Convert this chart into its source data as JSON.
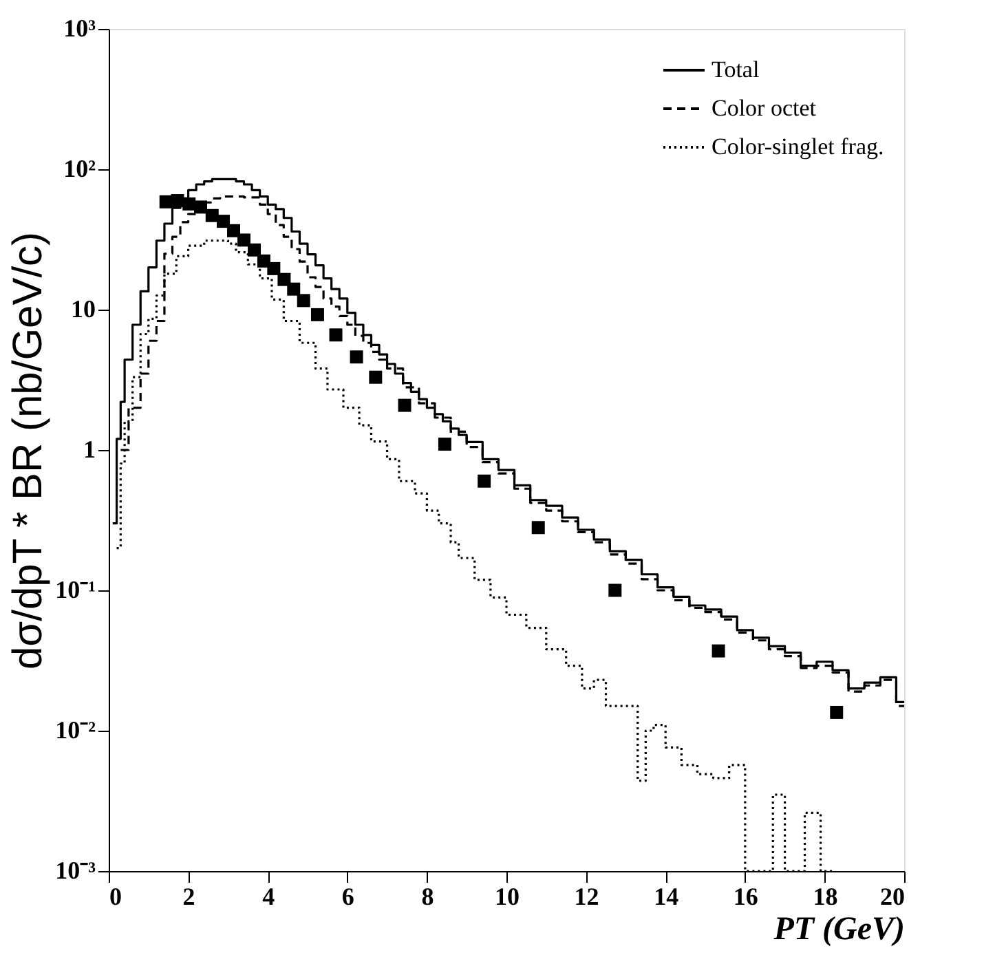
{
  "chart_data": {
    "type": "step",
    "xlabel": "PT (GeV)",
    "ylabel": "dσ/dpT * BR (nb/GeV/c)",
    "xlim": [
      0,
      20
    ],
    "ylim": [
      0.001,
      1000
    ],
    "log": true,
    "grid": false,
    "legend": "top right",
    "xticks": [
      0,
      2,
      4,
      6,
      8,
      10,
      12,
      14,
      16,
      18,
      20
    ],
    "yticks": [
      {
        "value": 1000,
        "label": "10³"
      },
      {
        "value": 100,
        "label": "10²"
      },
      10,
      1,
      {
        "value": 0.1,
        "label": "10⁻¹"
      },
      {
        "value": 0.01,
        "label": "10⁻²"
      },
      {
        "value": 0.001,
        "label": "10⁻³"
      }
    ],
    "series": [
      {
        "name": "Total",
        "color": "#000000",
        "line_style": "solid",
        "x": [
          0.1,
          0.2,
          0.3,
          0.4,
          0.6,
          0.8,
          1.0,
          1.2,
          1.4,
          1.6,
          1.8,
          2.0,
          2.2,
          2.4,
          2.6,
          3.2,
          3.4,
          3.6,
          3.8,
          4.0,
          4.2,
          4.4,
          4.6,
          4.8,
          5.0,
          5.2,
          5.4,
          5.6,
          5.8,
          6.0,
          6.2,
          6.4,
          6.6,
          6.8,
          7.0,
          7.2,
          7.4,
          7.6,
          7.8,
          8.0,
          8.2,
          8.4,
          8.6,
          8.8,
          9.0,
          9.4,
          9.8,
          10.2,
          10.6,
          11.0,
          11.4,
          11.8,
          12.2,
          12.6,
          13.0,
          13.4,
          13.8,
          14.2,
          14.6,
          15.0,
          15.4,
          15.8,
          16.2,
          16.6,
          17.0,
          17.4,
          17.8,
          18.2,
          18.6,
          19.0,
          19.4,
          19.8,
          20.0
        ],
        "values": [
          0.3,
          1.2,
          2.2,
          4.4,
          7.8,
          13.5,
          20,
          31,
          41,
          53,
          62,
          71,
          78,
          82,
          85,
          82,
          78,
          71,
          64,
          56,
          52,
          45,
          36,
          29.5,
          24.8,
          20.7,
          16.7,
          14,
          12,
          9.5,
          7.8,
          6.6,
          5.6,
          4.8,
          4.1,
          3.5,
          3.0,
          2.6,
          2.3,
          2.0,
          1.8,
          1.6,
          1.42,
          1.28,
          1.14,
          0.86,
          0.72,
          0.56,
          0.44,
          0.4,
          0.33,
          0.27,
          0.23,
          0.19,
          0.165,
          0.13,
          0.105,
          0.09,
          0.078,
          0.073,
          0.065,
          0.052,
          0.046,
          0.04,
          0.036,
          0.029,
          0.031,
          0.027,
          0.02,
          0.022,
          0.024,
          0.016,
          0.016
        ]
      },
      {
        "name": "Color octet",
        "color": "#000000",
        "line_style": "dashed",
        "x": [
          0.3,
          0.5,
          0.8,
          1.0,
          1.2,
          1.4,
          1.6,
          1.8,
          2.0,
          2.2,
          2.4,
          2.6,
          2.8,
          3.4,
          3.8,
          4.0,
          4.2,
          4.4,
          4.6,
          4.8,
          5.0,
          5.2,
          5.4,
          5.6,
          5.8,
          6.0,
          6.2,
          6.4,
          6.6,
          6.8,
          7.0,
          7.4,
          7.8,
          8.2,
          8.6,
          9.0,
          9.4,
          9.8,
          10.2,
          10.6,
          11.0,
          11.4,
          11.8,
          12.2,
          12.6,
          13.0,
          13.4,
          13.8,
          14.2,
          14.6,
          15.0,
          15.4,
          15.8,
          16.2,
          16.6,
          17.0,
          17.4,
          17.8,
          18.2,
          18.6,
          19.0,
          19.4,
          19.8,
          20.0
        ],
        "values": [
          1.0,
          2.0,
          3.5,
          6,
          8.3,
          25,
          33,
          42,
          48,
          54,
          58,
          62,
          64,
          63,
          56,
          48,
          40,
          33,
          27,
          22,
          17,
          14.5,
          12,
          10.5,
          9,
          7.8,
          6.5,
          5.8,
          5,
          4.4,
          3.8,
          2.8,
          2.15,
          1.7,
          1.35,
          1.05,
          0.82,
          0.68,
          0.53,
          0.42,
          0.37,
          0.31,
          0.26,
          0.22,
          0.18,
          0.155,
          0.12,
          0.1,
          0.085,
          0.075,
          0.07,
          0.062,
          0.05,
          0.044,
          0.038,
          0.034,
          0.028,
          0.029,
          0.026,
          0.019,
          0.021,
          0.023,
          0.015,
          0.015
        ]
      },
      {
        "name": "Color-singlet frag.",
        "color": "#000000",
        "line_style": "dotted",
        "x": [
          0.2,
          0.3,
          0.4,
          0.6,
          0.8,
          1.0,
          1.2,
          1.4,
          1.7,
          2.0,
          2.4,
          3.0,
          3.2,
          3.5,
          3.8,
          4.1,
          4.4,
          4.8,
          5.2,
          5.5,
          5.9,
          6.3,
          6.6,
          7.0,
          7.3,
          7.7,
          8.0,
          8.3,
          8.6,
          8.8,
          9.2,
          9.6,
          10.0,
          10.5,
          11.0,
          11.5,
          11.9,
          12.2,
          12.5,
          13.3,
          13.5,
          13.7,
          14.0,
          14.4,
          14.8,
          15.2,
          15.6,
          16.0,
          16.7,
          17.0,
          17.5,
          17.9,
          18.2
        ],
        "values": [
          0.2,
          0.8,
          1.6,
          3.3,
          6.7,
          8.6,
          12.6,
          18,
          24,
          28.5,
          31,
          29.5,
          25.6,
          21,
          16.7,
          11.8,
          8.3,
          5.8,
          3.8,
          2.7,
          2.0,
          1.5,
          1.15,
          0.86,
          0.6,
          0.49,
          0.37,
          0.3,
          0.22,
          0.17,
          0.119,
          0.089,
          0.067,
          0.054,
          0.038,
          0.029,
          0.02,
          0.023,
          0.015,
          0.0044,
          0.01,
          0.011,
          0.0076,
          0.0057,
          0.0049,
          0.0046,
          0.0057,
          0.001,
          0.0035,
          0.001,
          0.0026,
          0.001,
          0.001
        ]
      },
      {
        "type": "scatter",
        "color": "#000000",
        "marker": "square",
        "x": [
          1.44,
          1.73,
          2.02,
          2.31,
          2.6,
          2.88,
          3.14,
          3.4,
          3.66,
          3.9,
          4.15,
          4.41,
          4.65,
          4.9,
          5.25,
          5.71,
          6.23,
          6.71,
          7.44,
          8.45,
          9.44,
          10.8,
          12.73,
          15.33,
          18.3
        ],
        "values": [
          58.6,
          59.8,
          56.6,
          53.8,
          46.8,
          42.6,
          36.5,
          31.3,
          26.6,
          22.2,
          19.6,
          16.4,
          14.0,
          11.6,
          9.2,
          6.6,
          4.6,
          3.3,
          2.08,
          1.1,
          0.6,
          0.28,
          0.1,
          0.037,
          0.0135
        ]
      }
    ]
  }
}
